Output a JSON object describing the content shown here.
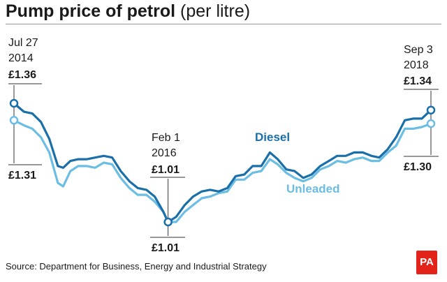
{
  "header": {
    "title_bold": "Pump price of petrol",
    "title_normal": "(per litre)"
  },
  "footer": {
    "source": "Source: Department for Business, Energy and Industrial Strategy",
    "logo_text": "PA"
  },
  "colors": {
    "diesel": "#1a6fa8",
    "unleaded": "#6bbde3",
    "text": "#1a1a1a",
    "rule": "#9a9a9a",
    "logo_bg": "#e2231a"
  },
  "chart_data": {
    "type": "line",
    "title": "Pump price of petrol",
    "subtitle": "(per litre)",
    "xlabel": "",
    "ylabel": "",
    "grid": false,
    "legend": "inline labels",
    "x": [
      "2014-07-27",
      "2014-09-01",
      "2014-10-01",
      "2014-11-01",
      "2014-12-01",
      "2015-01-01",
      "2015-01-20",
      "2015-02-15",
      "2015-03-15",
      "2015-04-15",
      "2015-05-15",
      "2015-06-15",
      "2015-07-15",
      "2015-08-15",
      "2015-09-15",
      "2015-10-15",
      "2015-11-15",
      "2015-12-15",
      "2016-01-15",
      "2016-02-01",
      "2016-03-01",
      "2016-04-01",
      "2016-05-01",
      "2016-06-01",
      "2016-07-01",
      "2016-08-01",
      "2016-09-01",
      "2016-10-01",
      "2016-11-01",
      "2016-12-01",
      "2017-01-01",
      "2017-02-01",
      "2017-03-01",
      "2017-04-01",
      "2017-05-01",
      "2017-06-01",
      "2017-07-01",
      "2017-08-01",
      "2017-09-01",
      "2017-10-01",
      "2017-11-01",
      "2017-12-01",
      "2018-01-01",
      "2018-02-01",
      "2018-03-01",
      "2018-04-01",
      "2018-05-01",
      "2018-06-01",
      "2018-07-01",
      "2018-08-01",
      "2018-09-03"
    ],
    "series": [
      {
        "name": "Diesel",
        "values": [
          1.36,
          1.335,
          1.33,
          1.305,
          1.255,
          1.175,
          1.17,
          1.19,
          1.195,
          1.195,
          1.2,
          1.205,
          1.2,
          1.16,
          1.13,
          1.11,
          1.105,
          1.085,
          1.04,
          1.01,
          1.025,
          1.06,
          1.085,
          1.1,
          1.105,
          1.1,
          1.11,
          1.145,
          1.15,
          1.175,
          1.175,
          1.215,
          1.195,
          1.165,
          1.16,
          1.14,
          1.15,
          1.175,
          1.19,
          1.205,
          1.205,
          1.215,
          1.215,
          1.205,
          1.2,
          1.225,
          1.26,
          1.31,
          1.315,
          1.315,
          1.34
        ]
      },
      {
        "name": "Unleaded",
        "values": [
          1.31,
          1.295,
          1.285,
          1.26,
          1.215,
          1.125,
          1.115,
          1.16,
          1.175,
          1.175,
          1.17,
          1.185,
          1.18,
          1.14,
          1.11,
          1.09,
          1.09,
          1.07,
          1.04,
          1.01,
          1.01,
          1.04,
          1.06,
          1.08,
          1.085,
          1.095,
          1.1,
          1.135,
          1.135,
          1.155,
          1.16,
          1.195,
          1.18,
          1.155,
          1.14,
          1.13,
          1.14,
          1.165,
          1.175,
          1.19,
          1.185,
          1.195,
          1.2,
          1.19,
          1.19,
          1.215,
          1.235,
          1.285,
          1.285,
          1.29,
          1.3
        ]
      }
    ],
    "annotations": [
      {
        "date": "Jul 27",
        "year": "2014",
        "top_value": "£1.36",
        "bottom_value": "£1.31"
      },
      {
        "date": "Feb 1",
        "year": "2016",
        "top_value": "£1.01",
        "bottom_value": "£1.01"
      },
      {
        "date": "Sep 3",
        "year": "2018",
        "top_value": "£1.34",
        "bottom_value": "£1.30"
      }
    ],
    "series_labels": [
      "Diesel",
      "Unleaded"
    ]
  }
}
